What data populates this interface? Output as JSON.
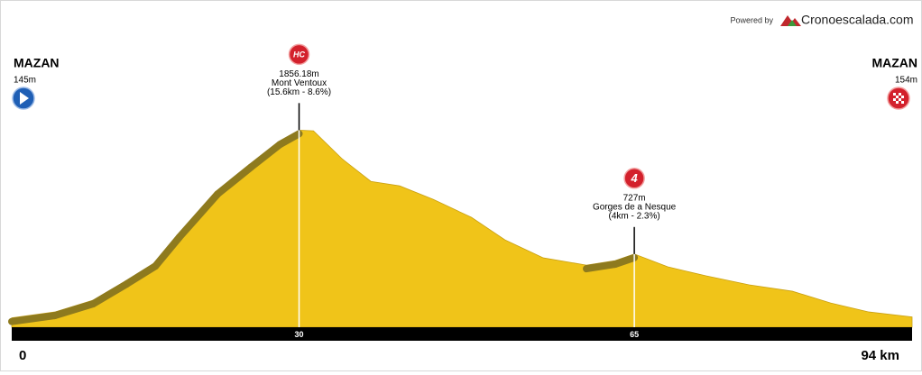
{
  "chart_data": {
    "type": "elevation-profile",
    "header": {
      "powered_by": "Powered by",
      "brand": "Cronoescalada.com"
    },
    "start": {
      "name": "MAZAN",
      "elevation": 145,
      "elevation_label": "145m"
    },
    "finish": {
      "name": "MAZAN",
      "elevation": 154,
      "elevation_label": "154m"
    },
    "x": [
      0,
      4.5,
      8.5,
      12,
      15,
      17.5,
      21.5,
      25,
      28,
      30,
      31.5,
      34.5,
      37.5,
      40.5,
      44,
      48,
      51.5,
      55.5,
      60,
      63,
      65,
      68.5,
      72.5,
      77,
      81.5,
      85.5,
      89.5,
      94
    ],
    "values": [
      145,
      199,
      306,
      487,
      650,
      913,
      1307,
      1553,
      1758,
      1856,
      1850,
      1594,
      1389,
      1348,
      1225,
      1061,
      856,
      692,
      626,
      667,
      727,
      610,
      528,
      446,
      388,
      281,
      199,
      154
    ],
    "color": "#f0c419",
    "slope_color": "#8e7a1e",
    "xlim": [
      0,
      94
    ],
    "ylim": [
      60,
      1900
    ],
    "xticks": [
      0,
      30,
      65,
      {
        "value": 94,
        "label": "94 km"
      }
    ],
    "climbs": [
      {
        "category": "HC",
        "x": 30,
        "elevation": 1856.18,
        "elevation_label": "1856.18m",
        "name": "Mont Ventoux",
        "detail": "(15.6km - 8.6%)"
      },
      {
        "category": "4",
        "x": 65,
        "elevation": 727,
        "elevation_label": "727m",
        "name": "Gorges de a Nesque",
        "detail": "(4km - 2.3%)"
      }
    ]
  }
}
